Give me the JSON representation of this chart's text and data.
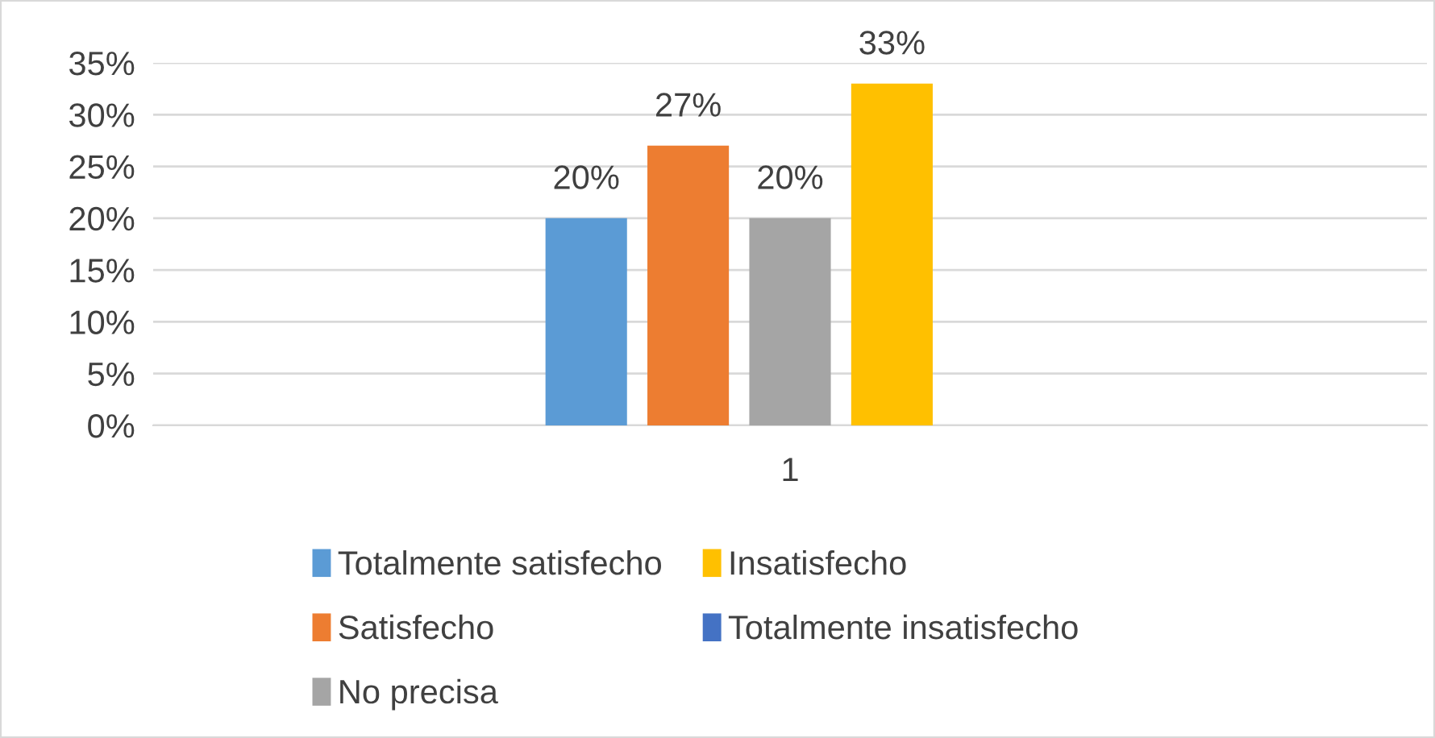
{
  "chart_data": {
    "type": "bar",
    "categories": [
      "1"
    ],
    "series": [
      {
        "name": "Totalmente satisfecho",
        "color": "#5b9bd5",
        "values": [
          20
        ],
        "value_labels": [
          "20%"
        ]
      },
      {
        "name": "Satisfecho",
        "color": "#ed7d31",
        "values": [
          27
        ],
        "value_labels": [
          "27%"
        ]
      },
      {
        "name": "No precisa",
        "color": "#a5a5a5",
        "values": [
          20
        ],
        "value_labels": [
          "20%"
        ]
      },
      {
        "name": "Insatisfecho",
        "color": "#ffc000",
        "values": [
          33
        ],
        "value_labels": [
          "33%"
        ]
      },
      {
        "name": "Totalmente insatisfecho",
        "color": "#4472c4",
        "values": [
          null
        ],
        "value_labels": [
          null
        ]
      }
    ],
    "ylim": [
      0,
      35
    ],
    "yticks": [
      {
        "value": 0,
        "label": "0%"
      },
      {
        "value": 5,
        "label": "5%"
      },
      {
        "value": 10,
        "label": "10%"
      },
      {
        "value": 15,
        "label": "15%"
      },
      {
        "value": 20,
        "label": "20%"
      },
      {
        "value": 25,
        "label": "25%"
      },
      {
        "value": 30,
        "label": "30%"
      },
      {
        "value": 35,
        "label": "35%"
      }
    ],
    "grid": "y",
    "legend": "bottom"
  }
}
